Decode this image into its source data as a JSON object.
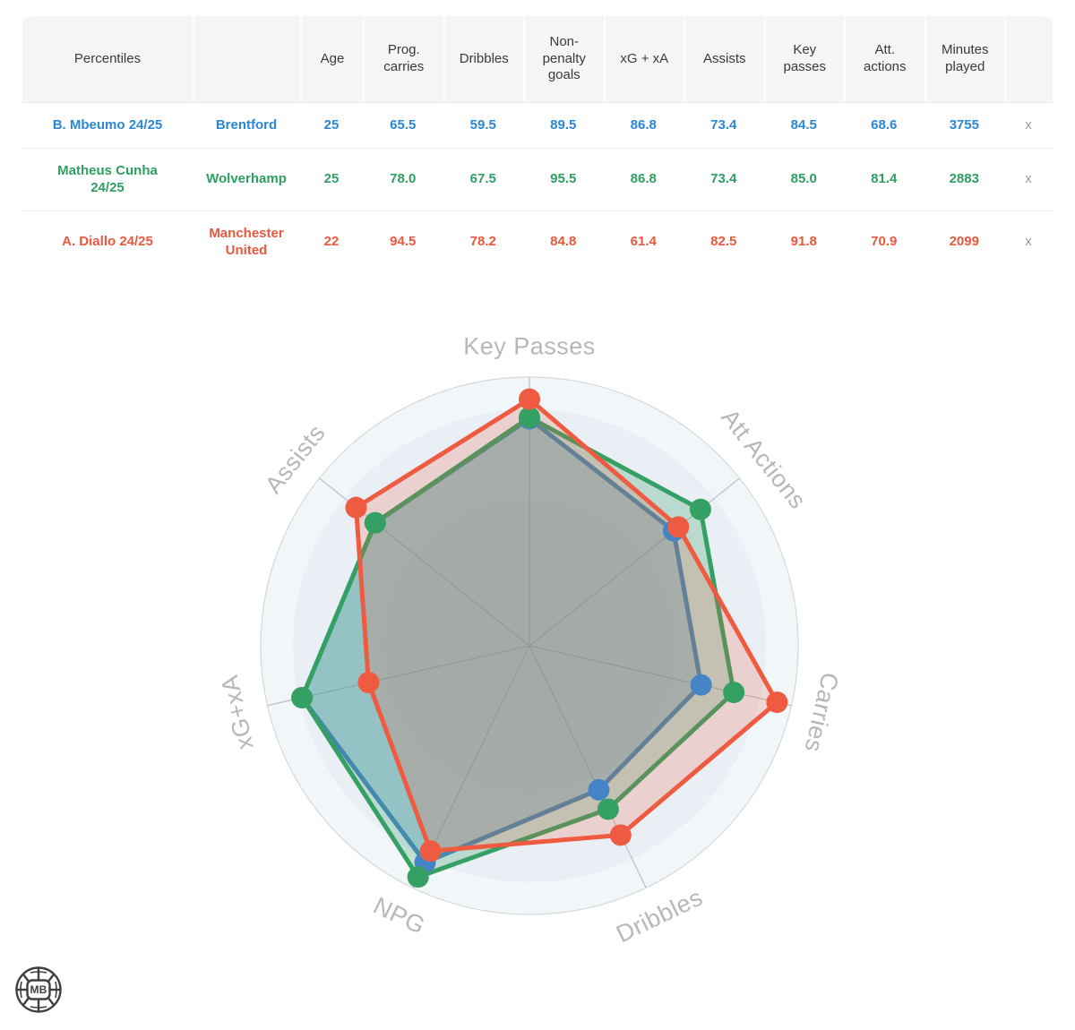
{
  "table": {
    "header": {
      "percentiles_label": "Percentiles",
      "team_label": "",
      "metric_cols": [
        "Age",
        "Prog. carries",
        "Dribbles",
        "Non-penalty goals",
        "xG + xA",
        "Assists",
        "Key passes",
        "Att. actions",
        "Minutes played"
      ],
      "close_label": ""
    },
    "rows": [
      {
        "player": "B. Mbeumo 24/25",
        "team": "Brentford",
        "color": "#2b87d6",
        "cells": [
          "25",
          "65.5",
          "59.5",
          "89.5",
          "86.8",
          "73.4",
          "84.5",
          "68.6",
          "3755"
        ],
        "close": "x"
      },
      {
        "player": "Matheus Cunha 24/25",
        "team": "Wolverhamp",
        "color": "#2f9e63",
        "cells": [
          "25",
          "78.0",
          "67.5",
          "95.5",
          "86.8",
          "73.4",
          "85.0",
          "81.4",
          "2883"
        ],
        "close": "x"
      },
      {
        "player": "A. Diallo 24/25",
        "team": "Manchester United",
        "color": "#e8583e",
        "cells": [
          "22",
          "94.5",
          "78.2",
          "84.8",
          "61.4",
          "82.5",
          "91.8",
          "70.9",
          "2099"
        ],
        "close": "x"
      }
    ]
  },
  "chart_data": {
    "type": "radar",
    "axes": [
      "Key Passes",
      "Att Actions",
      "Carries",
      "Dribbles",
      "NPG",
      "xG+xA",
      "Assists"
    ],
    "range": [
      0,
      100
    ],
    "grid": "circular",
    "series": [
      {
        "name": "B. Mbeumo 24/25",
        "color": "#4583c7",
        "fill_opacity": 0.3,
        "values": [
          84.5,
          68.6,
          65.5,
          59.5,
          89.5,
          86.8,
          73.4
        ]
      },
      {
        "name": "Matheus Cunha 24/25",
        "color": "#35a063",
        "fill_opacity": 0.26,
        "values": [
          85.0,
          81.4,
          78.0,
          67.5,
          95.5,
          86.8,
          73.4
        ]
      },
      {
        "name": "A. Diallo 24/25",
        "color": "#ee5b40",
        "fill_opacity": 0.2,
        "values": [
          91.8,
          70.9,
          94.5,
          78.2,
          84.8,
          61.4,
          82.5
        ]
      }
    ]
  },
  "logo": {
    "text": "MB"
  },
  "colors": {
    "rim": "#d3d8dd",
    "spoke": "#b9bfc6",
    "plot_bg_outer": "#f1f6f9",
    "plot_bg_inner": "#e9eff4",
    "axis_label": "#b7b7b7"
  }
}
